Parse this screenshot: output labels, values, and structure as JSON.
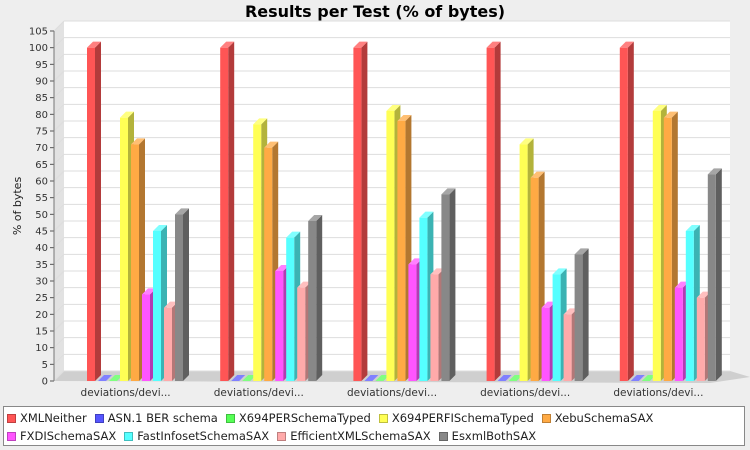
{
  "chart_data": {
    "type": "bar",
    "title": "Results per Test (% of bytes)",
    "xlabel": "",
    "ylabel": "% of bytes",
    "ylim": [
      0,
      105
    ],
    "yticks": [
      0,
      5,
      10,
      15,
      20,
      25,
      30,
      35,
      40,
      45,
      50,
      55,
      60,
      65,
      70,
      75,
      80,
      85,
      90,
      95,
      100,
      105
    ],
    "grid": true,
    "legend_position": "bottom",
    "categories": [
      "deviations/devi...",
      "deviations/devi...",
      "deviations/devi...",
      "deviations/devi...",
      "deviations/devi..."
    ],
    "series": [
      {
        "name": "XMLNeither",
        "color": "#ff5555",
        "values": [
          100,
          100,
          100,
          100,
          100
        ]
      },
      {
        "name": "ASN.1 BER schema",
        "color": "#5555ff",
        "values": [
          0,
          0,
          0,
          0,
          0
        ]
      },
      {
        "name": "X694PERSchemaTyped",
        "color": "#55ff55",
        "values": [
          0,
          0,
          0,
          0,
          0
        ]
      },
      {
        "name": "X694PERFISchemaTyped",
        "color": "#ffff55",
        "values": [
          79,
          77,
          81,
          71,
          81
        ]
      },
      {
        "name": "XebuSchemaSAX",
        "color": "#ffaa44",
        "values": [
          71,
          70,
          78,
          61,
          79
        ]
      },
      {
        "name": "FXDISchemaSAX",
        "color": "#ff55ff",
        "values": [
          26,
          33,
          35,
          22,
          28
        ]
      },
      {
        "name": "FastInfosetSchemaSAX",
        "color": "#55ffff",
        "values": [
          45,
          43,
          49,
          32,
          45
        ]
      },
      {
        "name": "EfficientXMLSchemaSAX",
        "color": "#ffaaaa",
        "values": [
          22,
          28,
          32,
          20,
          25
        ]
      },
      {
        "name": "EsxmlBothSAX",
        "color": "#888888",
        "values": [
          50,
          48,
          56,
          38,
          62
        ]
      }
    ]
  }
}
